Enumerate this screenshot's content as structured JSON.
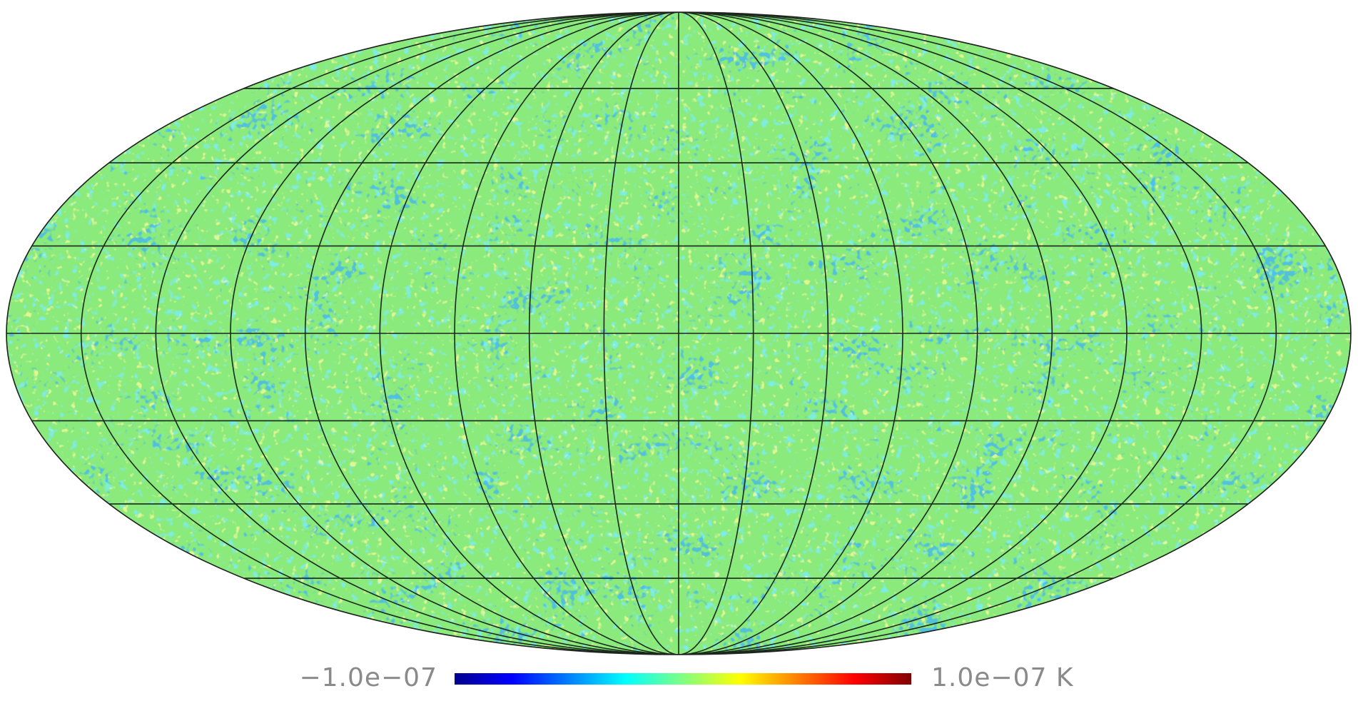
{
  "colorbar": {
    "min_label": "−1.0e−07",
    "max_label": "1.0e−07 K"
  }
}
